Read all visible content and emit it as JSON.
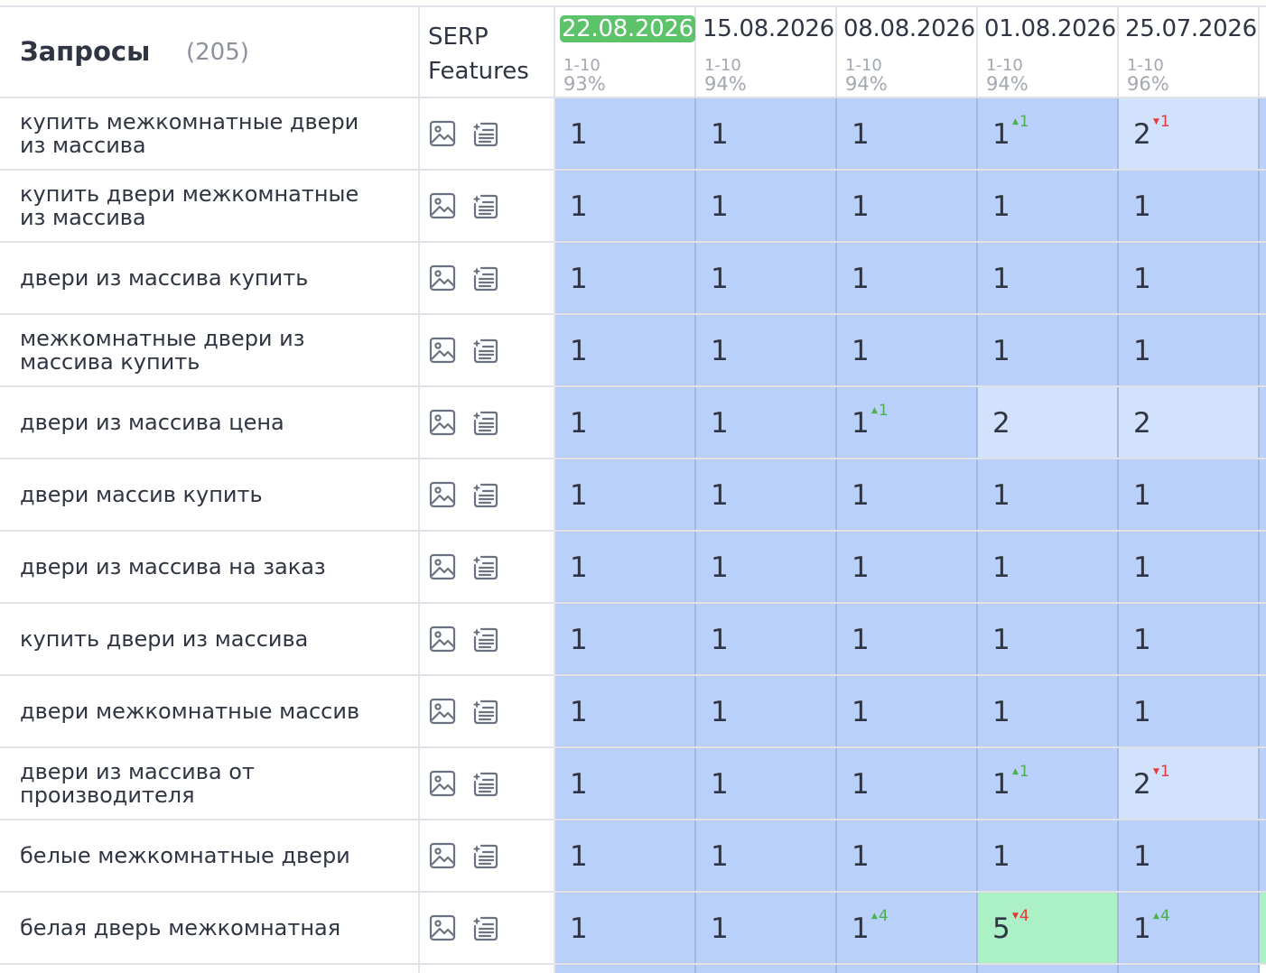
{
  "header": {
    "query_title": "Запросы",
    "query_count": "(205)",
    "serp_line1": "SERP",
    "serp_line2": "Features",
    "dates": [
      {
        "date": "22.08.2026",
        "range": "1-10",
        "pct": "93%",
        "current": true
      },
      {
        "date": "15.08.2026",
        "range": "1-10",
        "pct": "94%",
        "current": false
      },
      {
        "date": "08.08.2026",
        "range": "1-10",
        "pct": "94%",
        "current": false
      },
      {
        "date": "01.08.2026",
        "range": "1-10",
        "pct": "94%",
        "current": false
      },
      {
        "date": "25.07.2026",
        "range": "1-10",
        "pct": "96%",
        "current": false
      }
    ]
  },
  "colors": {
    "current_date_bg": "#5cc36b",
    "pos_top": "#b9d0fa",
    "pos_light": "#d2e1fc",
    "pos_green": "#acf0c6",
    "delta_up": "#4caf50",
    "delta_down": "#e53935"
  },
  "serp_icons": [
    "image-icon",
    "featured-snippet-icon"
  ],
  "rows": [
    {
      "query": "купить межкомнатные двери из массива",
      "cells": [
        {
          "v": "1"
        },
        {
          "v": "1"
        },
        {
          "v": "1"
        },
        {
          "v": "1",
          "d": "1",
          "dir": "up"
        },
        {
          "v": "2",
          "d": "1",
          "dir": "down",
          "bg": "light"
        }
      ]
    },
    {
      "query": "купить двери межкомнатные из массива",
      "cells": [
        {
          "v": "1"
        },
        {
          "v": "1"
        },
        {
          "v": "1"
        },
        {
          "v": "1"
        },
        {
          "v": "1"
        }
      ]
    },
    {
      "query": "двери из массива купить",
      "cells": [
        {
          "v": "1"
        },
        {
          "v": "1"
        },
        {
          "v": "1"
        },
        {
          "v": "1"
        },
        {
          "v": "1"
        }
      ]
    },
    {
      "query": "межкомнатные двери из массива купить",
      "cells": [
        {
          "v": "1"
        },
        {
          "v": "1"
        },
        {
          "v": "1"
        },
        {
          "v": "1"
        },
        {
          "v": "1"
        }
      ]
    },
    {
      "query": "двери из массива цена",
      "cells": [
        {
          "v": "1"
        },
        {
          "v": "1"
        },
        {
          "v": "1",
          "d": "1",
          "dir": "up"
        },
        {
          "v": "2",
          "bg": "light"
        },
        {
          "v": "2",
          "bg": "light"
        }
      ]
    },
    {
      "query": "двери массив купить",
      "cells": [
        {
          "v": "1"
        },
        {
          "v": "1"
        },
        {
          "v": "1"
        },
        {
          "v": "1"
        },
        {
          "v": "1"
        }
      ]
    },
    {
      "query": "двери из массива на заказ",
      "cells": [
        {
          "v": "1"
        },
        {
          "v": "1"
        },
        {
          "v": "1"
        },
        {
          "v": "1"
        },
        {
          "v": "1"
        }
      ]
    },
    {
      "query": "купить двери из массива",
      "cells": [
        {
          "v": "1"
        },
        {
          "v": "1"
        },
        {
          "v": "1"
        },
        {
          "v": "1"
        },
        {
          "v": "1"
        }
      ]
    },
    {
      "query": "двери межкомнатные массив",
      "cells": [
        {
          "v": "1"
        },
        {
          "v": "1"
        },
        {
          "v": "1"
        },
        {
          "v": "1"
        },
        {
          "v": "1"
        }
      ]
    },
    {
      "query": "двери из массива от производителя",
      "cells": [
        {
          "v": "1"
        },
        {
          "v": "1"
        },
        {
          "v": "1"
        },
        {
          "v": "1",
          "d": "1",
          "dir": "up"
        },
        {
          "v": "2",
          "d": "1",
          "dir": "down",
          "bg": "light"
        }
      ]
    },
    {
      "query": "белые межкомнатные двери",
      "cells": [
        {
          "v": "1"
        },
        {
          "v": "1"
        },
        {
          "v": "1"
        },
        {
          "v": "1"
        },
        {
          "v": "1"
        }
      ]
    },
    {
      "query": "белая дверь межкомнатная",
      "cells": [
        {
          "v": "1"
        },
        {
          "v": "1"
        },
        {
          "v": "1",
          "d": "4",
          "dir": "up"
        },
        {
          "v": "5",
          "d": "4",
          "dir": "down",
          "bg": "green"
        },
        {
          "v": "1",
          "d": "4",
          "dir": "up"
        }
      ],
      "edge": "green"
    }
  ]
}
